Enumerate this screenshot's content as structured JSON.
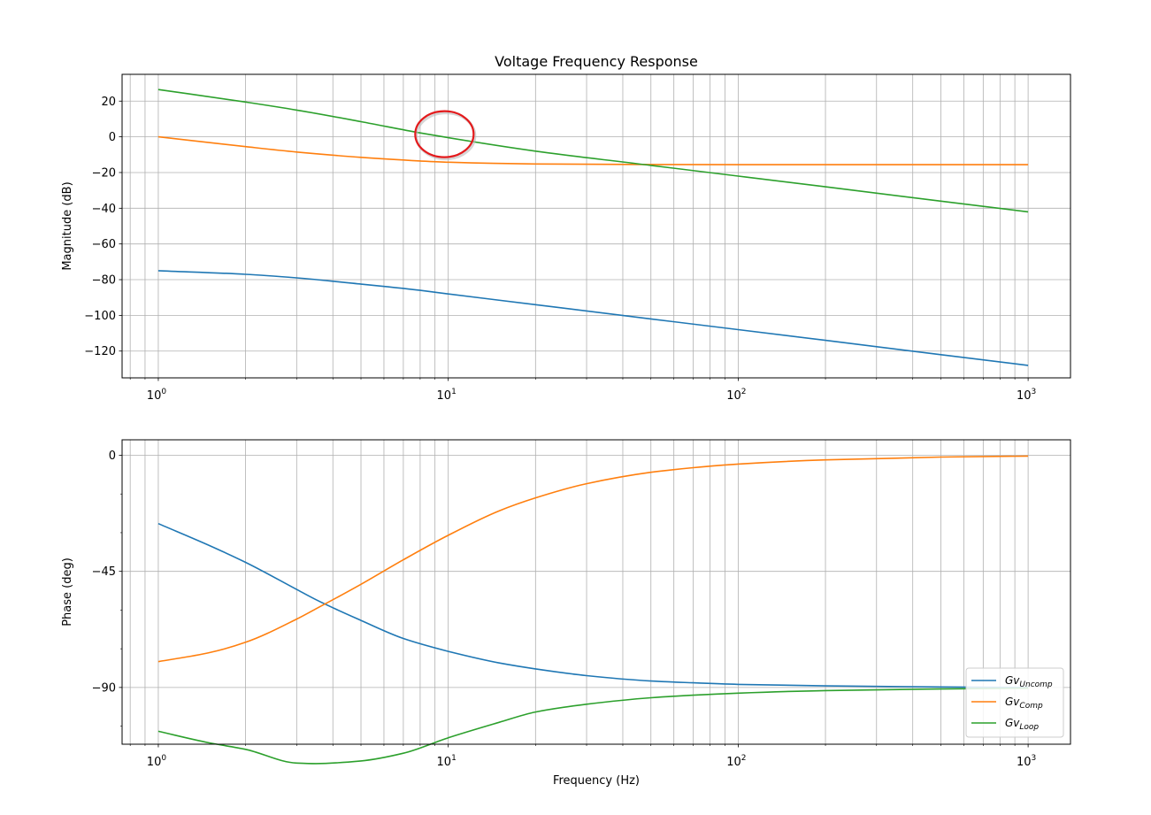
{
  "chart_data": [
    {
      "type": "line",
      "title": "Voltage Frequency Response",
      "xlabel": "",
      "ylabel": "Magnitude (dB)",
      "xscale": "log",
      "xlim": [
        0.75,
        1400
      ],
      "ylim": [
        -135,
        35
      ],
      "xticks": [
        1,
        10,
        100,
        1000
      ],
      "xtick_labels": [
        {
          "base": "10",
          "exp": "0"
        },
        {
          "base": "10",
          "exp": "1"
        },
        {
          "base": "10",
          "exp": "2"
        },
        {
          "base": "10",
          "exp": "3"
        }
      ],
      "yticks": [
        20,
        0,
        -20,
        -40,
        -60,
        -80,
        -100,
        -120
      ],
      "ytick_labels": [
        "20",
        "0",
        "−20",
        "−40",
        "−60",
        "−80",
        "−100",
        "−120"
      ],
      "grid": true,
      "x": [
        1,
        2,
        3,
        5,
        8,
        10,
        20,
        50,
        100,
        200,
        500,
        1000
      ],
      "series": [
        {
          "color": "#1f77b4",
          "values": [
            -75,
            -77,
            -79,
            -82.5,
            -86,
            -88,
            -94,
            -102,
            -108,
            -114,
            -122,
            -128
          ]
        },
        {
          "color": "#ff7f0e",
          "values": [
            0,
            -5.5,
            -8.5,
            -11.5,
            -13.5,
            -14.2,
            -15.2,
            -15.5,
            -15.6,
            -15.6,
            -15.6,
            -15.6
          ]
        },
        {
          "color": "#2ca02c",
          "values": [
            26.5,
            19.5,
            15,
            8.5,
            2.2,
            -0.5,
            -8,
            -16,
            -22,
            -28,
            -36,
            -42
          ]
        }
      ],
      "annotation": {
        "shape": "circle",
        "color": "#e41a1c",
        "x": 9.7,
        "y": 1.5
      }
    },
    {
      "type": "line",
      "title": "",
      "xlabel": "Frequency (Hz)",
      "ylabel": "Phase (deg)",
      "xscale": "log",
      "xlim": [
        0.75,
        1400
      ],
      "ylim": [
        -112,
        6
      ],
      "xticks": [
        1,
        10,
        100,
        1000
      ],
      "xtick_labels": [
        {
          "base": "10",
          "exp": "0"
        },
        {
          "base": "10",
          "exp": "1"
        },
        {
          "base": "10",
          "exp": "2"
        },
        {
          "base": "10",
          "exp": "3"
        }
      ],
      "yticks": [
        0,
        -45,
        -90
      ],
      "ytick_labels": [
        "0",
        "−45",
        "−90"
      ],
      "minor_yticks": [
        -15,
        -30,
        -60,
        -75,
        -105
      ],
      "grid": true,
      "legend": "lower right",
      "x": [
        1,
        1.5,
        2,
        3,
        3.5,
        5,
        7,
        10,
        15,
        20,
        30,
        50,
        70,
        100,
        200,
        500,
        1000
      ],
      "series": [
        {
          "name_base": "Gv",
          "name_sub": "Uncomp",
          "color": "#1f77b4",
          "values": [
            -26.5,
            -35,
            -41.5,
            -52,
            -56,
            -64,
            -71,
            -76,
            -80.5,
            -82.8,
            -85.4,
            -87.5,
            -88.2,
            -88.8,
            -89.4,
            -89.8,
            -90
          ]
        },
        {
          "name_base": "Gv",
          "name_sub": "Comp",
          "color": "#ff7f0e",
          "values": [
            -80,
            -76.5,
            -72.5,
            -63.5,
            -59.5,
            -50,
            -40.5,
            -31,
            -21.5,
            -16.5,
            -11,
            -6.6,
            -4.8,
            -3.4,
            -1.8,
            -0.7,
            -0.3
          ]
        },
        {
          "name_base": "Gv",
          "name_sub": "Loop",
          "color": "#2ca02c",
          "values": [
            -107,
            -111.5,
            -114,
            -119.3,
            -119.5,
            -118.5,
            -115.5,
            -109.5,
            -103.5,
            -99.5,
            -96.5,
            -94,
            -93,
            -92.2,
            -91.2,
            -90.6,
            -90.3
          ]
        }
      ]
    }
  ]
}
